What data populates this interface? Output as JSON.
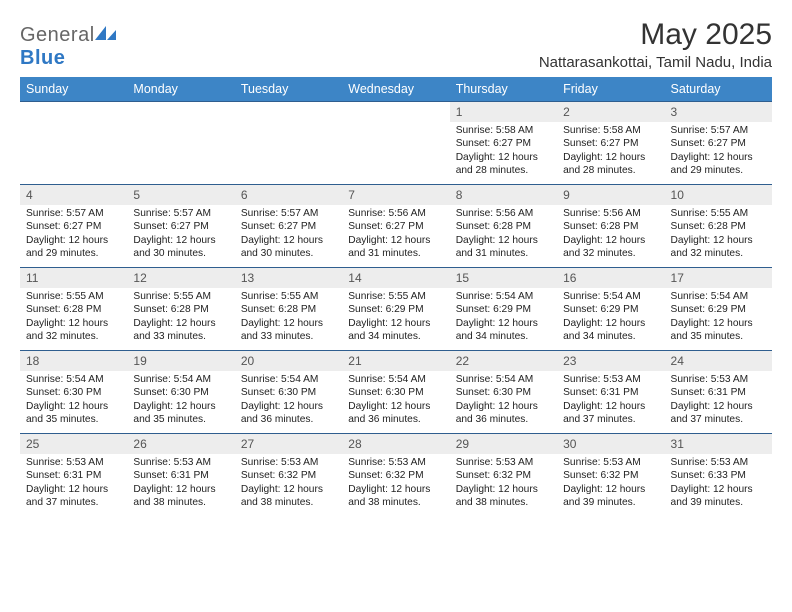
{
  "brand": {
    "part1": "General",
    "part2": "Blue"
  },
  "title": "May 2025",
  "location": "Nattarasankottai, Tamil Nadu, India",
  "colors": {
    "header_bg": "#3d85c6",
    "header_text": "#ffffff",
    "rule": "#2f5e8f",
    "daynum_bg": "#ededed",
    "logo_blue": "#2f78c4"
  },
  "weekdays": [
    "Sunday",
    "Monday",
    "Tuesday",
    "Wednesday",
    "Thursday",
    "Friday",
    "Saturday"
  ],
  "weeks": [
    [
      {
        "n": "",
        "sr": "",
        "ss": "",
        "dl": "",
        "empty": true
      },
      {
        "n": "",
        "sr": "",
        "ss": "",
        "dl": "",
        "empty": true
      },
      {
        "n": "",
        "sr": "",
        "ss": "",
        "dl": "",
        "empty": true
      },
      {
        "n": "",
        "sr": "",
        "ss": "",
        "dl": "",
        "empty": true
      },
      {
        "n": "1",
        "sr": "Sunrise: 5:58 AM",
        "ss": "Sunset: 6:27 PM",
        "dl": "Daylight: 12 hours and 28 minutes."
      },
      {
        "n": "2",
        "sr": "Sunrise: 5:58 AM",
        "ss": "Sunset: 6:27 PM",
        "dl": "Daylight: 12 hours and 28 minutes."
      },
      {
        "n": "3",
        "sr": "Sunrise: 5:57 AM",
        "ss": "Sunset: 6:27 PM",
        "dl": "Daylight: 12 hours and 29 minutes."
      }
    ],
    [
      {
        "n": "4",
        "sr": "Sunrise: 5:57 AM",
        "ss": "Sunset: 6:27 PM",
        "dl": "Daylight: 12 hours and 29 minutes."
      },
      {
        "n": "5",
        "sr": "Sunrise: 5:57 AM",
        "ss": "Sunset: 6:27 PM",
        "dl": "Daylight: 12 hours and 30 minutes."
      },
      {
        "n": "6",
        "sr": "Sunrise: 5:57 AM",
        "ss": "Sunset: 6:27 PM",
        "dl": "Daylight: 12 hours and 30 minutes."
      },
      {
        "n": "7",
        "sr": "Sunrise: 5:56 AM",
        "ss": "Sunset: 6:27 PM",
        "dl": "Daylight: 12 hours and 31 minutes."
      },
      {
        "n": "8",
        "sr": "Sunrise: 5:56 AM",
        "ss": "Sunset: 6:28 PM",
        "dl": "Daylight: 12 hours and 31 minutes."
      },
      {
        "n": "9",
        "sr": "Sunrise: 5:56 AM",
        "ss": "Sunset: 6:28 PM",
        "dl": "Daylight: 12 hours and 32 minutes."
      },
      {
        "n": "10",
        "sr": "Sunrise: 5:55 AM",
        "ss": "Sunset: 6:28 PM",
        "dl": "Daylight: 12 hours and 32 minutes."
      }
    ],
    [
      {
        "n": "11",
        "sr": "Sunrise: 5:55 AM",
        "ss": "Sunset: 6:28 PM",
        "dl": "Daylight: 12 hours and 32 minutes."
      },
      {
        "n": "12",
        "sr": "Sunrise: 5:55 AM",
        "ss": "Sunset: 6:28 PM",
        "dl": "Daylight: 12 hours and 33 minutes."
      },
      {
        "n": "13",
        "sr": "Sunrise: 5:55 AM",
        "ss": "Sunset: 6:28 PM",
        "dl": "Daylight: 12 hours and 33 minutes."
      },
      {
        "n": "14",
        "sr": "Sunrise: 5:55 AM",
        "ss": "Sunset: 6:29 PM",
        "dl": "Daylight: 12 hours and 34 minutes."
      },
      {
        "n": "15",
        "sr": "Sunrise: 5:54 AM",
        "ss": "Sunset: 6:29 PM",
        "dl": "Daylight: 12 hours and 34 minutes."
      },
      {
        "n": "16",
        "sr": "Sunrise: 5:54 AM",
        "ss": "Sunset: 6:29 PM",
        "dl": "Daylight: 12 hours and 34 minutes."
      },
      {
        "n": "17",
        "sr": "Sunrise: 5:54 AM",
        "ss": "Sunset: 6:29 PM",
        "dl": "Daylight: 12 hours and 35 minutes."
      }
    ],
    [
      {
        "n": "18",
        "sr": "Sunrise: 5:54 AM",
        "ss": "Sunset: 6:30 PM",
        "dl": "Daylight: 12 hours and 35 minutes."
      },
      {
        "n": "19",
        "sr": "Sunrise: 5:54 AM",
        "ss": "Sunset: 6:30 PM",
        "dl": "Daylight: 12 hours and 35 minutes."
      },
      {
        "n": "20",
        "sr": "Sunrise: 5:54 AM",
        "ss": "Sunset: 6:30 PM",
        "dl": "Daylight: 12 hours and 36 minutes."
      },
      {
        "n": "21",
        "sr": "Sunrise: 5:54 AM",
        "ss": "Sunset: 6:30 PM",
        "dl": "Daylight: 12 hours and 36 minutes."
      },
      {
        "n": "22",
        "sr": "Sunrise: 5:54 AM",
        "ss": "Sunset: 6:30 PM",
        "dl": "Daylight: 12 hours and 36 minutes."
      },
      {
        "n": "23",
        "sr": "Sunrise: 5:53 AM",
        "ss": "Sunset: 6:31 PM",
        "dl": "Daylight: 12 hours and 37 minutes."
      },
      {
        "n": "24",
        "sr": "Sunrise: 5:53 AM",
        "ss": "Sunset: 6:31 PM",
        "dl": "Daylight: 12 hours and 37 minutes."
      }
    ],
    [
      {
        "n": "25",
        "sr": "Sunrise: 5:53 AM",
        "ss": "Sunset: 6:31 PM",
        "dl": "Daylight: 12 hours and 37 minutes."
      },
      {
        "n": "26",
        "sr": "Sunrise: 5:53 AM",
        "ss": "Sunset: 6:31 PM",
        "dl": "Daylight: 12 hours and 38 minutes."
      },
      {
        "n": "27",
        "sr": "Sunrise: 5:53 AM",
        "ss": "Sunset: 6:32 PM",
        "dl": "Daylight: 12 hours and 38 minutes."
      },
      {
        "n": "28",
        "sr": "Sunrise: 5:53 AM",
        "ss": "Sunset: 6:32 PM",
        "dl": "Daylight: 12 hours and 38 minutes."
      },
      {
        "n": "29",
        "sr": "Sunrise: 5:53 AM",
        "ss": "Sunset: 6:32 PM",
        "dl": "Daylight: 12 hours and 38 minutes."
      },
      {
        "n": "30",
        "sr": "Sunrise: 5:53 AM",
        "ss": "Sunset: 6:32 PM",
        "dl": "Daylight: 12 hours and 39 minutes."
      },
      {
        "n": "31",
        "sr": "Sunrise: 5:53 AM",
        "ss": "Sunset: 6:33 PM",
        "dl": "Daylight: 12 hours and 39 minutes."
      }
    ]
  ]
}
